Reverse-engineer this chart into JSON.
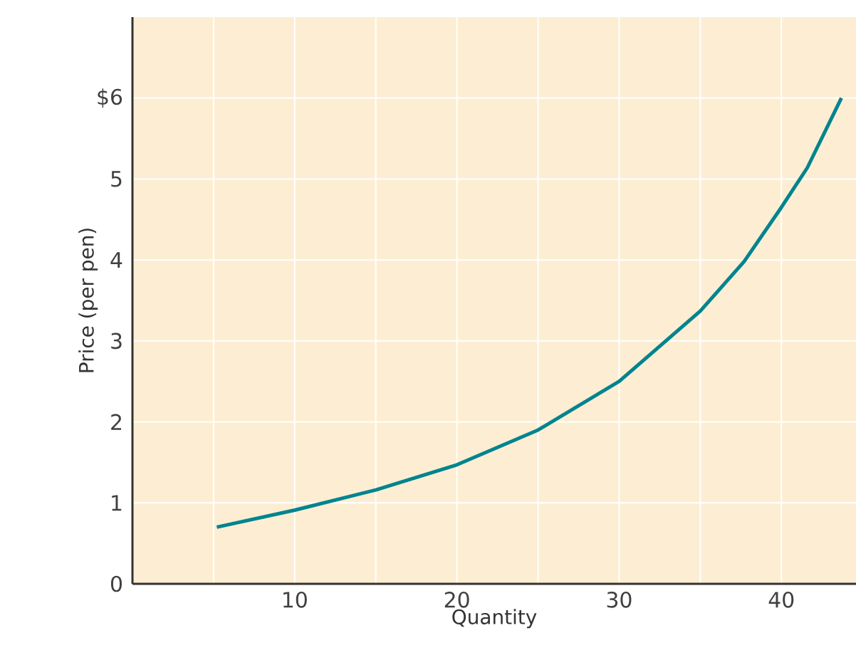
{
  "chart_data": {
    "type": "line",
    "xlabel": "Quantity",
    "ylabel": "Price (per pen)",
    "x": [
      5.2,
      10,
      15,
      20,
      25,
      30,
      35,
      37.7,
      40,
      41.6,
      43.7
    ],
    "series": [
      {
        "color": "#00848f",
        "values": [
          0.7,
          0.91,
          1.16,
          1.47,
          1.9,
          2.5,
          3.37,
          3.98,
          4.65,
          5.14,
          6.0
        ]
      }
    ],
    "xlim": [
      0,
      44.6
    ],
    "ylim": [
      0,
      7.0
    ],
    "xticks": [
      {
        "value": 5,
        "label": null
      },
      10,
      {
        "value": 15,
        "label": null
      },
      20,
      {
        "value": 25,
        "label": null
      },
      30,
      {
        "value": 35,
        "label": null
      },
      40
    ],
    "yticks": [
      0,
      1,
      2,
      3,
      4,
      5,
      {
        "value": 6,
        "label": "$6"
      }
    ],
    "grid": true,
    "marker": "none",
    "line_style": "solid"
  }
}
